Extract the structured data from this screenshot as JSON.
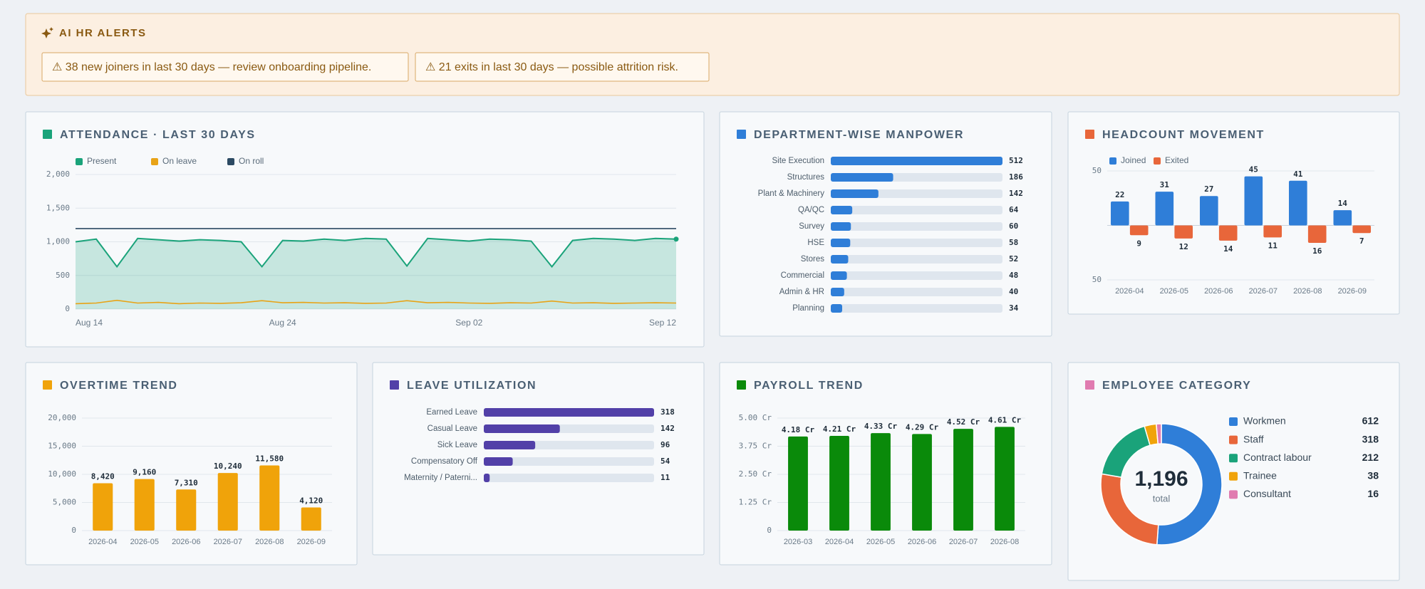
{
  "alerts": {
    "title": "AI HR ALERTS",
    "items": [
      "⚠ 38 new joiners in last 30 days — review onboarding pipeline.",
      "⚠ 21 exits in last 30 days — possible attrition risk."
    ]
  },
  "chart_data": [
    {
      "type": "line",
      "title": "ATTENDANCE · LAST 30 DAYS",
      "categories": [
        "Aug 14",
        null,
        null,
        null,
        null,
        null,
        null,
        null,
        null,
        null,
        "Aug 24",
        null,
        null,
        null,
        null,
        null,
        null,
        null,
        null,
        "Sep 02",
        null,
        null,
        null,
        null,
        null,
        null,
        null,
        null,
        null,
        "Sep 12"
      ],
      "series": [
        {
          "name": "Present",
          "color": "#1aa37a",
          "area": true,
          "values": [
            1000,
            1040,
            630,
            1050,
            1030,
            1010,
            1030,
            1020,
            1000,
            630,
            1020,
            1010,
            1040,
            1020,
            1050,
            1040,
            640,
            1050,
            1030,
            1010,
            1040,
            1030,
            1010,
            630,
            1020,
            1050,
            1040,
            1020,
            1050,
            1040
          ]
        },
        {
          "name": "On leave",
          "color": "#e8a317",
          "values": [
            80,
            90,
            130,
            90,
            100,
            80,
            90,
            85,
            95,
            125,
            95,
            100,
            90,
            95,
            85,
            90,
            125,
            95,
            100,
            90,
            85,
            95,
            90,
            120,
            90,
            95,
            85,
            90,
            95,
            90
          ]
        },
        {
          "name": "On roll",
          "color": "#2c4a63",
          "values": [
            1196,
            1196,
            1196,
            1196,
            1196,
            1196,
            1196,
            1196,
            1196,
            1196,
            1196,
            1196,
            1196,
            1196,
            1196,
            1196,
            1196,
            1196,
            1196,
            1196,
            1196,
            1196,
            1196,
            1196,
            1196,
            1196,
            1196,
            1196,
            1196,
            1196
          ]
        }
      ],
      "ylim": [
        0,
        2000
      ],
      "yticks": [
        0,
        500,
        {
          "value": 1000,
          "label": "1,000"
        },
        {
          "value": 1500,
          "label": "1,500"
        },
        {
          "value": 2000,
          "label": "2,000"
        }
      ],
      "grid": true
    },
    {
      "type": "bar",
      "orientation": "horizontal",
      "title": "DEPARTMENT-WISE MANPOWER",
      "color": "#2f7ed8",
      "categories": [
        "Site Execution",
        "Structures",
        "Plant & Machinery",
        "QA/QC",
        "Survey",
        "HSE",
        "Stores",
        "Commercial",
        "Admin & HR",
        "Planning"
      ],
      "values": [
        512,
        186,
        142,
        64,
        60,
        58,
        52,
        48,
        40,
        34
      ]
    },
    {
      "type": "bar",
      "title": "HEADCOUNT MOVEMENT",
      "categories": [
        "2026-04",
        "2026-05",
        "2026-06",
        "2026-07",
        "2026-08",
        "2026-09"
      ],
      "series": [
        {
          "name": "Joined",
          "color": "#2f7ed8",
          "values": [
            22,
            31,
            27,
            45,
            41,
            14
          ]
        },
        {
          "name": "Exited",
          "color": "#e8663a",
          "values": [
            -9,
            -12,
            -14,
            -11,
            -16,
            -7
          ],
          "value_labels": [
            "9",
            "12",
            "14",
            "11",
            "16",
            "7"
          ]
        }
      ],
      "ylim": [
        -50,
        50
      ],
      "yticks": [
        {
          "value": -50,
          "label": "50"
        },
        50
      ],
      "grid": true
    },
    {
      "type": "bar",
      "title": "OVERTIME TREND",
      "color": "#f0a30a",
      "categories": [
        "2026-04",
        "2026-05",
        "2026-06",
        "2026-07",
        "2026-08",
        "2026-09"
      ],
      "values": [
        8420,
        9160,
        7310,
        10240,
        11580,
        4120
      ],
      "value_labels": [
        "8,420",
        "9,160",
        "7,310",
        "10,240",
        "11,580",
        "4,120"
      ],
      "ylim": [
        0,
        20000
      ],
      "yticks": [
        0,
        {
          "value": 5000,
          "label": "5,000"
        },
        {
          "value": 10000,
          "label": "10,000"
        },
        {
          "value": 15000,
          "label": "15,000"
        },
        {
          "value": 20000,
          "label": "20,000"
        }
      ],
      "grid": true
    },
    {
      "type": "bar",
      "orientation": "horizontal",
      "title": "LEAVE UTILIZATION",
      "color": "#5240a8",
      "categories": [
        "Earned Leave",
        "Casual Leave",
        "Sick Leave",
        "Compensatory Off",
        "Maternity / Paterni..."
      ],
      "values": [
        318,
        142,
        96,
        54,
        11
      ]
    },
    {
      "type": "bar",
      "title": "PAYROLL TREND",
      "color": "#0a8a0a",
      "categories": [
        "2026-03",
        "2026-04",
        "2026-05",
        "2026-06",
        "2026-07",
        "2026-08"
      ],
      "values": [
        4.18,
        4.21,
        4.33,
        4.29,
        4.52,
        4.61
      ],
      "value_labels": [
        "4.18 Cr",
        "4.21 Cr",
        "4.33 Cr",
        "4.29 Cr",
        "4.52 Cr",
        "4.61 Cr"
      ],
      "ylim": [
        0,
        5
      ],
      "yticks": [
        0,
        {
          "value": 1.25,
          "label": "1.25 Cr"
        },
        {
          "value": 2.5,
          "label": "2.50 Cr"
        },
        {
          "value": 3.75,
          "label": "3.75 Cr"
        },
        {
          "value": 5,
          "label": "5.00 Cr"
        }
      ],
      "grid": true
    },
    {
      "type": "pie",
      "donut": true,
      "title": "EMPLOYEE CATEGORY",
      "categories": [
        "Workmen",
        "Staff",
        "Contract labour",
        "Trainee",
        "Consultant"
      ],
      "values": [
        612,
        318,
        212,
        38,
        16
      ],
      "colors": [
        "#2f7ed8",
        "#e8663a",
        "#1aa37a",
        "#f0a30a",
        "#e07bb0"
      ],
      "total": 1196,
      "total_label": "1,196",
      "total_caption": "total"
    }
  ]
}
